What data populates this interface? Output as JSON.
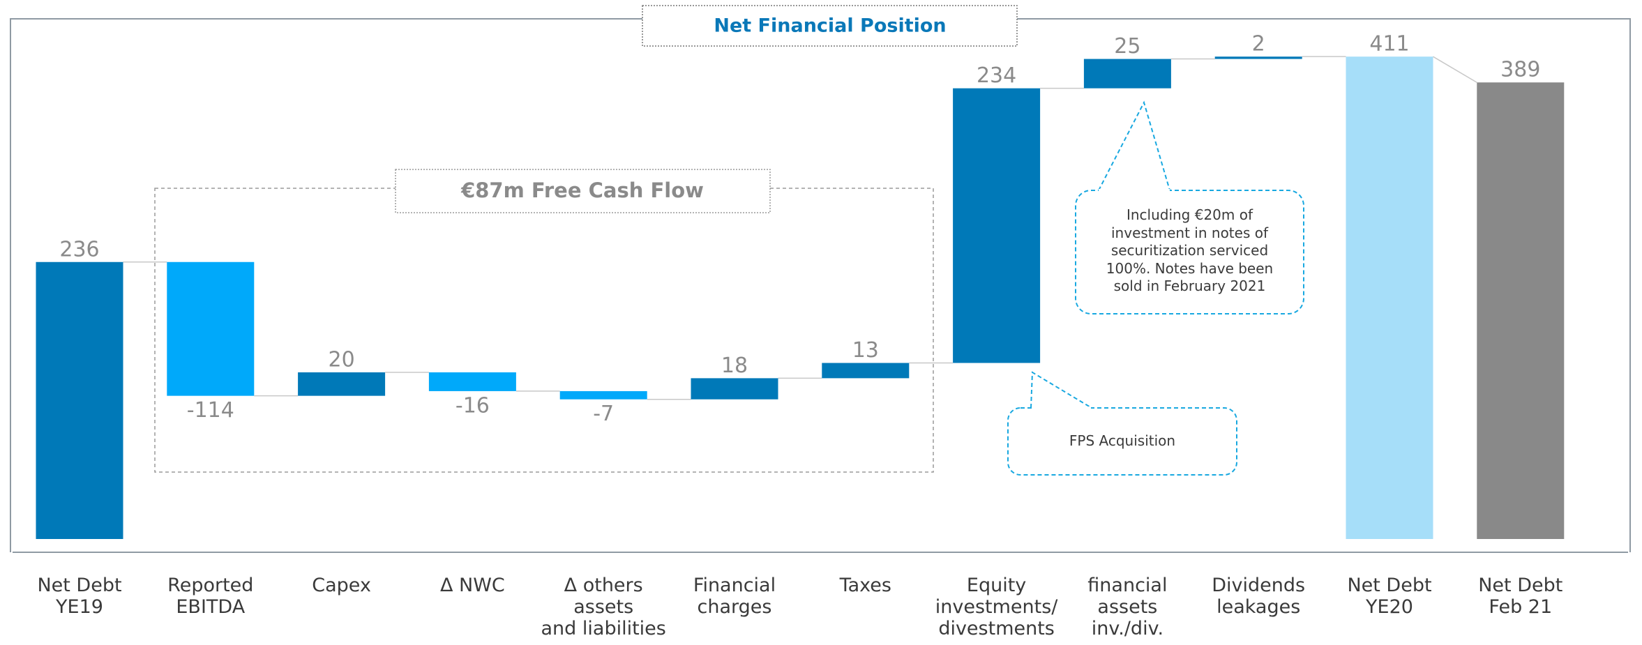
{
  "chart_data": {
    "type": "waterfall",
    "title": "Net Financial Position",
    "categories": [
      "Net Debt\nYE19",
      "Reported\nEBITDA",
      "Capex",
      "Δ NWC",
      "Δ others assets\nand liabilities",
      "Financial\ncharges",
      "Taxes",
      "Equity\ninvestments/\ndivestments",
      "financial\nassets\ninv./div.",
      "Dividends\nleakages",
      "Net Debt\nYE20",
      "Net Debt\nFeb 21"
    ],
    "values": [
      236,
      -114,
      20,
      -16,
      -7,
      18,
      13,
      234,
      25,
      2,
      411,
      389
    ],
    "totals": [
      true,
      false,
      false,
      false,
      false,
      false,
      false,
      false,
      false,
      false,
      true,
      true
    ],
    "colors": [
      "#0079b8",
      "#00a9fa",
      "#0079b8",
      "#00a9fa",
      "#00a9fa",
      "#0079b8",
      "#0079b8",
      "#0079b8",
      "#0079b8",
      "#0079b8",
      "#a6def9",
      "#898989"
    ],
    "ylim": [
      0,
      442
    ],
    "annotations": {
      "free_cash_flow": "€87m Free Cash Flow",
      "financial_assets_note": "Including €20m of\ninvestment in notes of\nsecuritization serviced\n100%. Notes have been\nsold in February 2021",
      "equity_note": "FPS Acquisition"
    }
  }
}
